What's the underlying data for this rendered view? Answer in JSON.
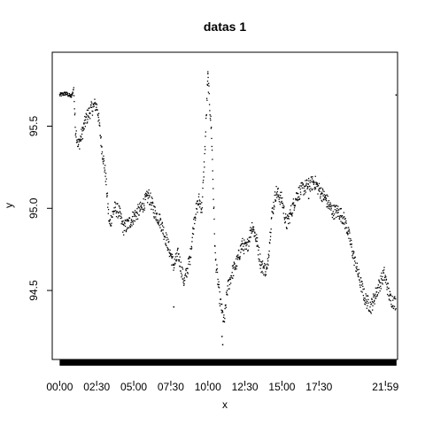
{
  "chart_data": {
    "type": "scatter",
    "title": "datas 1",
    "xlabel": "x",
    "ylabel": "y",
    "xticks": [
      "00:00",
      "02:30",
      "05:00",
      "07:30",
      "10:00",
      "12:30",
      "15:00",
      "17:30",
      "21:59"
    ],
    "x_hours": [
      0.0,
      2.5,
      5.0,
      7.5,
      10.0,
      12.5,
      15.0,
      17.5,
      21.98
    ],
    "yticks": [
      94.5,
      95.0,
      95.5
    ],
    "xlim_hours": [
      -0.5,
      22.8
    ],
    "ylim": [
      94.08,
      95.95
    ],
    "grid": false,
    "legend": "none",
    "point_color": "#000000",
    "rug_color": "#000000",
    "trend": [
      [
        0.0,
        95.69
      ],
      [
        0.4,
        95.7
      ],
      [
        0.8,
        95.68
      ],
      [
        0.95,
        95.73
      ],
      [
        1.05,
        95.5
      ],
      [
        1.25,
        95.38
      ],
      [
        1.5,
        95.45
      ],
      [
        1.8,
        95.55
      ],
      [
        2.1,
        95.6
      ],
      [
        2.4,
        95.63
      ],
      [
        2.55,
        95.61
      ],
      [
        2.8,
        95.4
      ],
      [
        3.1,
        95.2
      ],
      [
        3.35,
        94.9
      ],
      [
        3.7,
        95.0
      ],
      [
        4.0,
        94.98
      ],
      [
        4.3,
        94.88
      ],
      [
        4.6,
        94.9
      ],
      [
        5.0,
        94.95
      ],
      [
        5.5,
        95.0
      ],
      [
        6.0,
        95.08
      ],
      [
        6.4,
        94.98
      ],
      [
        6.8,
        94.92
      ],
      [
        7.3,
        94.78
      ],
      [
        7.7,
        94.65
      ],
      [
        8.0,
        94.72
      ],
      [
        8.4,
        94.55
      ],
      [
        8.8,
        94.7
      ],
      [
        9.1,
        94.95
      ],
      [
        9.4,
        95.05
      ],
      [
        9.6,
        95.0
      ],
      [
        9.8,
        95.35
      ],
      [
        10.0,
        95.8
      ],
      [
        10.25,
        95.45
      ],
      [
        10.5,
        94.7
      ],
      [
        10.8,
        94.45
      ],
      [
        11.1,
        94.3
      ],
      [
        11.3,
        94.5
      ],
      [
        11.6,
        94.6
      ],
      [
        12.0,
        94.68
      ],
      [
        12.3,
        94.78
      ],
      [
        12.6,
        94.75
      ],
      [
        13.0,
        94.9
      ],
      [
        13.3,
        94.8
      ],
      [
        13.6,
        94.65
      ],
      [
        14.0,
        94.62
      ],
      [
        14.3,
        94.95
      ],
      [
        14.6,
        95.1
      ],
      [
        15.0,
        95.05
      ],
      [
        15.3,
        94.9
      ],
      [
        15.7,
        95.0
      ],
      [
        16.0,
        95.08
      ],
      [
        16.4,
        95.12
      ],
      [
        16.8,
        95.14
      ],
      [
        17.2,
        95.16
      ],
      [
        17.6,
        95.1
      ],
      [
        18.0,
        95.05
      ],
      [
        18.4,
        94.98
      ],
      [
        18.8,
        94.98
      ],
      [
        19.1,
        94.95
      ],
      [
        19.4,
        94.88
      ],
      [
        19.8,
        94.72
      ],
      [
        20.2,
        94.58
      ],
      [
        20.6,
        94.45
      ],
      [
        21.0,
        94.4
      ],
      [
        21.5,
        94.52
      ],
      [
        21.9,
        94.6
      ],
      [
        22.3,
        94.45
      ],
      [
        22.7,
        94.42
      ]
    ],
    "outliers": [
      [
        22.7,
        95.69
      ],
      [
        10.0,
        95.82
      ],
      [
        9.98,
        95.75
      ],
      [
        11.0,
        94.17
      ],
      [
        10.95,
        94.22
      ],
      [
        7.7,
        94.4
      ],
      [
        16.8,
        95.06
      ]
    ]
  }
}
